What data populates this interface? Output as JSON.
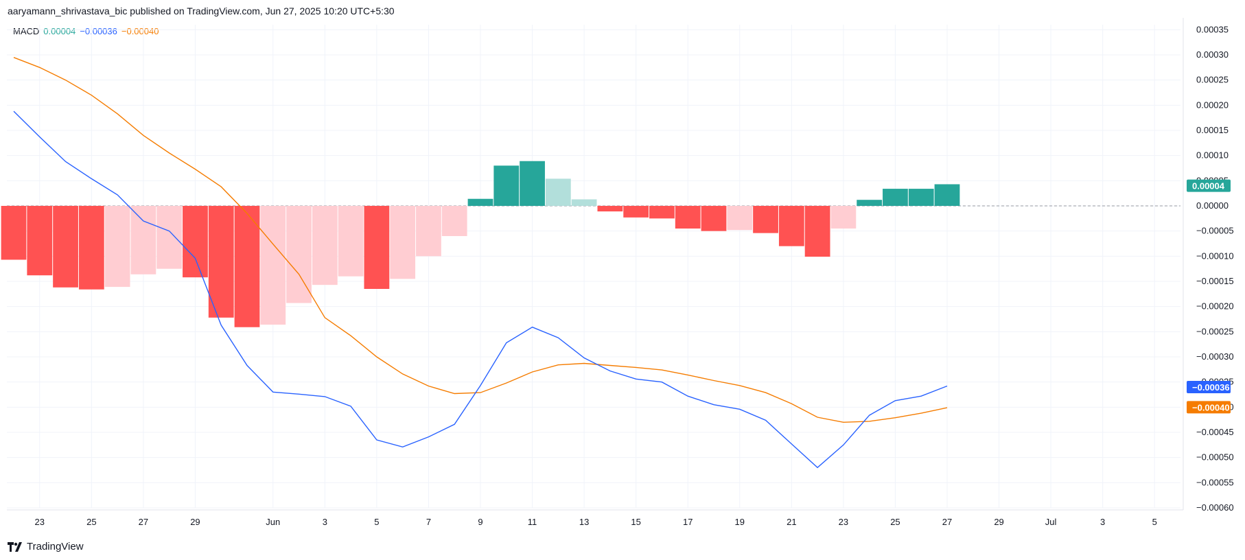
{
  "header": {
    "publisher_line": "aaryamann_shrivastava_bic published on TradingView.com, Jun 27, 2025 10:20 UTC+5:30"
  },
  "legend": {
    "name": "MACD",
    "histogram_value": "0.00004",
    "macd_value": "−0.00036",
    "signal_value": "−0.00040"
  },
  "footer": {
    "brand": "TradingView",
    "logo_icon": "tradingview-logo-icon"
  },
  "colors": {
    "macd_line": "#2962ff",
    "signal_line": "#f57c00",
    "hist_pos_strong": "#26a69a",
    "hist_pos_weak": "#b2dfdb",
    "hist_neg_strong": "#ff5252",
    "hist_neg_weak": "#ffcdd2",
    "grid": "#f0f3fa"
  },
  "price_tags": [
    {
      "text": "0.00004",
      "value": 4e-05,
      "color": "#26a69a"
    },
    {
      "text": "−0.00036",
      "value": -0.00036,
      "color": "#2962ff"
    },
    {
      "text": "−0.00040",
      "value": -0.0004,
      "color": "#f57c00"
    }
  ],
  "chart_data": {
    "type": "bar",
    "title": "MACD",
    "ylim": [
      -0.0006,
      0.00036
    ],
    "yticks": [
      {
        "v": 0.00035,
        "label": "0.00035"
      },
      {
        "v": 0.0003,
        "label": "0.00030"
      },
      {
        "v": 0.00025,
        "label": "0.00025"
      },
      {
        "v": 0.0002,
        "label": "0.00020"
      },
      {
        "v": 0.00015,
        "label": "0.00015"
      },
      {
        "v": 0.0001,
        "label": "0.00010"
      },
      {
        "v": 5e-05,
        "label": "0.00005"
      },
      {
        "v": 0.0,
        "label": "0.00000"
      },
      {
        "v": -5e-05,
        "label": "−0.00005"
      },
      {
        "v": -0.0001,
        "label": "−0.00010"
      },
      {
        "v": -0.00015,
        "label": "−0.00015"
      },
      {
        "v": -0.0002,
        "label": "−0.00020"
      },
      {
        "v": -0.00025,
        "label": "−0.00025"
      },
      {
        "v": -0.0003,
        "label": "−0.00030"
      },
      {
        "v": -0.00035,
        "label": "−0.00035"
      },
      {
        "v": -0.0004,
        "label": "−0.00040"
      },
      {
        "v": -0.00045,
        "label": "−0.00045"
      },
      {
        "v": -0.0005,
        "label": "−0.00050"
      },
      {
        "v": -0.00055,
        "label": "−0.00055"
      },
      {
        "v": -0.0006,
        "label": "−0.00060"
      }
    ],
    "xticks": [
      {
        "date": "2025-05-23",
        "label": "23"
      },
      {
        "date": "2025-05-25",
        "label": "25"
      },
      {
        "date": "2025-05-27",
        "label": "27"
      },
      {
        "date": "2025-05-29",
        "label": "29"
      },
      {
        "date": "2025-06-01",
        "label": "Jun"
      },
      {
        "date": "2025-06-03",
        "label": "3"
      },
      {
        "date": "2025-06-05",
        "label": "5"
      },
      {
        "date": "2025-06-07",
        "label": "7"
      },
      {
        "date": "2025-06-09",
        "label": "9"
      },
      {
        "date": "2025-06-11",
        "label": "11"
      },
      {
        "date": "2025-06-13",
        "label": "13"
      },
      {
        "date": "2025-06-15",
        "label": "15"
      },
      {
        "date": "2025-06-17",
        "label": "17"
      },
      {
        "date": "2025-06-19",
        "label": "19"
      },
      {
        "date": "2025-06-21",
        "label": "21"
      },
      {
        "date": "2025-06-23",
        "label": "23"
      },
      {
        "date": "2025-06-25",
        "label": "25"
      },
      {
        "date": "2025-06-27",
        "label": "27"
      },
      {
        "date": "2025-06-29",
        "label": "29"
      },
      {
        "date": "2025-07-01",
        "label": "Jul"
      },
      {
        "date": "2025-07-03",
        "label": "3"
      },
      {
        "date": "2025-07-05",
        "label": "5"
      }
    ],
    "x_range": [
      "2025-05-22",
      "2025-07-06"
    ],
    "histogram": [
      {
        "date": "2025-05-22",
        "value": -0.000107
      },
      {
        "date": "2025-05-23",
        "value": -0.000138
      },
      {
        "date": "2025-05-24",
        "value": -0.000162
      },
      {
        "date": "2025-05-25",
        "value": -0.000166
      },
      {
        "date": "2025-05-26",
        "value": -0.000161
      },
      {
        "date": "2025-05-27",
        "value": -0.000136
      },
      {
        "date": "2025-05-28",
        "value": -0.000125
      },
      {
        "date": "2025-05-29",
        "value": -0.000142
      },
      {
        "date": "2025-05-30",
        "value": -0.000222
      },
      {
        "date": "2025-05-31",
        "value": -0.000241
      },
      {
        "date": "2025-06-01",
        "value": -0.000236
      },
      {
        "date": "2025-06-02",
        "value": -0.000193
      },
      {
        "date": "2025-06-03",
        "value": -0.000157
      },
      {
        "date": "2025-06-04",
        "value": -0.00014
      },
      {
        "date": "2025-06-05",
        "value": -0.000165
      },
      {
        "date": "2025-06-06",
        "value": -0.000145
      },
      {
        "date": "2025-06-07",
        "value": -0.0001
      },
      {
        "date": "2025-06-08",
        "value": -6e-05
      },
      {
        "date": "2025-06-09",
        "value": 1.4e-05
      },
      {
        "date": "2025-06-10",
        "value": 8e-05
      },
      {
        "date": "2025-06-11",
        "value": 8.9e-05
      },
      {
        "date": "2025-06-12",
        "value": 5.4e-05
      },
      {
        "date": "2025-06-13",
        "value": 1.3e-05
      },
      {
        "date": "2025-06-14",
        "value": -1.1e-05
      },
      {
        "date": "2025-06-15",
        "value": -2.3e-05
      },
      {
        "date": "2025-06-16",
        "value": -2.5e-05
      },
      {
        "date": "2025-06-17",
        "value": -4.5e-05
      },
      {
        "date": "2025-06-18",
        "value": -5e-05
      },
      {
        "date": "2025-06-19",
        "value": -4.8e-05
      },
      {
        "date": "2025-06-20",
        "value": -5.4e-05
      },
      {
        "date": "2025-06-21",
        "value": -8e-05
      },
      {
        "date": "2025-06-22",
        "value": -0.000101
      },
      {
        "date": "2025-06-23",
        "value": -4.5e-05
      },
      {
        "date": "2025-06-24",
        "value": 1.2e-05
      },
      {
        "date": "2025-06-25",
        "value": 3.4e-05
      },
      {
        "date": "2025-06-26",
        "value": 3.4e-05
      },
      {
        "date": "2025-06-27",
        "value": 4.3e-05
      }
    ],
    "macd": [
      {
        "date": "2025-05-22",
        "value": 0.000188
      },
      {
        "date": "2025-05-23",
        "value": 0.000137
      },
      {
        "date": "2025-05-24",
        "value": 8.8e-05
      },
      {
        "date": "2025-05-25",
        "value": 5.4e-05
      },
      {
        "date": "2025-05-26",
        "value": 2.2e-05
      },
      {
        "date": "2025-05-27",
        "value": -3e-05
      },
      {
        "date": "2025-05-28",
        "value": -5e-05
      },
      {
        "date": "2025-05-29",
        "value": -0.000104
      },
      {
        "date": "2025-05-30",
        "value": -0.000237
      },
      {
        "date": "2025-05-31",
        "value": -0.000317
      },
      {
        "date": "2025-06-01",
        "value": -0.00037
      },
      {
        "date": "2025-06-02",
        "value": -0.000374
      },
      {
        "date": "2025-06-03",
        "value": -0.000379
      },
      {
        "date": "2025-06-04",
        "value": -0.000398
      },
      {
        "date": "2025-06-05",
        "value": -0.000465
      },
      {
        "date": "2025-06-06",
        "value": -0.000479
      },
      {
        "date": "2025-06-07",
        "value": -0.000459
      },
      {
        "date": "2025-06-08",
        "value": -0.000434
      },
      {
        "date": "2025-06-09",
        "value": -0.000357
      },
      {
        "date": "2025-06-10",
        "value": -0.000272
      },
      {
        "date": "2025-06-11",
        "value": -0.000241
      },
      {
        "date": "2025-06-12",
        "value": -0.000262
      },
      {
        "date": "2025-06-13",
        "value": -0.000302
      },
      {
        "date": "2025-06-14",
        "value": -0.000328
      },
      {
        "date": "2025-06-15",
        "value": -0.000344
      },
      {
        "date": "2025-06-16",
        "value": -0.00035
      },
      {
        "date": "2025-06-17",
        "value": -0.000378
      },
      {
        "date": "2025-06-18",
        "value": -0.000395
      },
      {
        "date": "2025-06-19",
        "value": -0.000404
      },
      {
        "date": "2025-06-20",
        "value": -0.000426
      },
      {
        "date": "2025-06-21",
        "value": -0.000473
      },
      {
        "date": "2025-06-22",
        "value": -0.00052
      },
      {
        "date": "2025-06-23",
        "value": -0.000475
      },
      {
        "date": "2025-06-24",
        "value": -0.000416
      },
      {
        "date": "2025-06-25",
        "value": -0.000387
      },
      {
        "date": "2025-06-26",
        "value": -0.000378
      },
      {
        "date": "2025-06-27",
        "value": -0.000358
      }
    ],
    "signal": [
      {
        "date": "2025-05-22",
        "value": 0.000295
      },
      {
        "date": "2025-05-23",
        "value": 0.000275
      },
      {
        "date": "2025-05-24",
        "value": 0.00025
      },
      {
        "date": "2025-05-25",
        "value": 0.00022
      },
      {
        "date": "2025-05-26",
        "value": 0.000183
      },
      {
        "date": "2025-05-27",
        "value": 0.00014
      },
      {
        "date": "2025-05-28",
        "value": 0.000105
      },
      {
        "date": "2025-05-29",
        "value": 7.3e-05
      },
      {
        "date": "2025-05-30",
        "value": 3.8e-05
      },
      {
        "date": "2025-05-31",
        "value": -1.5e-05
      },
      {
        "date": "2025-06-01",
        "value": -7.6e-05
      },
      {
        "date": "2025-06-02",
        "value": -0.000136
      },
      {
        "date": "2025-06-03",
        "value": -0.000222
      },
      {
        "date": "2025-06-04",
        "value": -0.000258
      },
      {
        "date": "2025-06-05",
        "value": -0.0003
      },
      {
        "date": "2025-06-06",
        "value": -0.000334
      },
      {
        "date": "2025-06-07",
        "value": -0.000358
      },
      {
        "date": "2025-06-08",
        "value": -0.000373
      },
      {
        "date": "2025-06-09",
        "value": -0.000371
      },
      {
        "date": "2025-06-10",
        "value": -0.000352
      },
      {
        "date": "2025-06-11",
        "value": -0.00033
      },
      {
        "date": "2025-06-12",
        "value": -0.000316
      },
      {
        "date": "2025-06-13",
        "value": -0.000313
      },
      {
        "date": "2025-06-14",
        "value": -0.000317
      },
      {
        "date": "2025-06-15",
        "value": -0.000321
      },
      {
        "date": "2025-06-16",
        "value": -0.000326
      },
      {
        "date": "2025-06-17",
        "value": -0.000336
      },
      {
        "date": "2025-06-18",
        "value": -0.000347
      },
      {
        "date": "2025-06-19",
        "value": -0.000357
      },
      {
        "date": "2025-06-20",
        "value": -0.000371
      },
      {
        "date": "2025-06-21",
        "value": -0.000393
      },
      {
        "date": "2025-06-22",
        "value": -0.00042
      },
      {
        "date": "2025-06-23",
        "value": -0.00043
      },
      {
        "date": "2025-06-24",
        "value": -0.000428
      },
      {
        "date": "2025-06-25",
        "value": -0.000421
      },
      {
        "date": "2025-06-26",
        "value": -0.000412
      },
      {
        "date": "2025-06-27",
        "value": -0.000401
      }
    ]
  }
}
